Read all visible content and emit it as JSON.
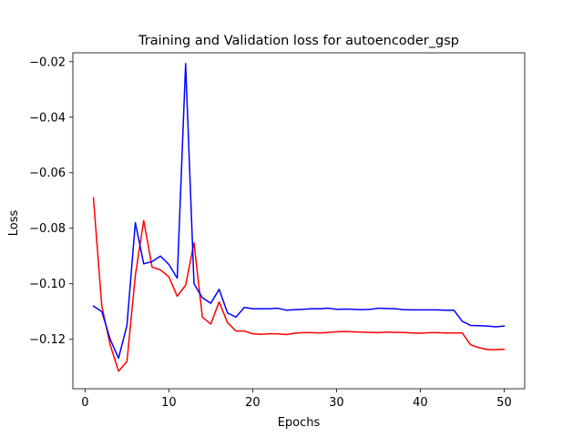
{
  "chart_data": {
    "type": "line",
    "title": "Training and Validation loss for autoencoder_gsp",
    "xlabel": "Epochs",
    "ylabel": "Loss",
    "xlim": [
      -1.45,
      52.45
    ],
    "ylim": [
      -0.1378,
      -0.0168
    ],
    "xticks": [
      0,
      10,
      20,
      30,
      40,
      50
    ],
    "xtick_labels": [
      "0",
      "10",
      "20",
      "30",
      "40",
      "50"
    ],
    "yticks": [
      -0.12,
      -0.1,
      -0.08,
      -0.06,
      -0.04,
      -0.02
    ],
    "ytick_labels": [
      "−0.12",
      "−0.10",
      "−0.08",
      "−0.06",
      "−0.04",
      "−0.02"
    ],
    "grid": false,
    "legend": false,
    "x": [
      1,
      2,
      3,
      4,
      5,
      6,
      7,
      8,
      9,
      10,
      11,
      12,
      13,
      14,
      15,
      16,
      17,
      18,
      19,
      20,
      21,
      22,
      23,
      24,
      25,
      26,
      27,
      28,
      29,
      30,
      31,
      32,
      33,
      34,
      35,
      36,
      37,
      38,
      39,
      40,
      41,
      42,
      43,
      44,
      45,
      46,
      47,
      48,
      49,
      50
    ],
    "series": [
      {
        "color": "#ff0000",
        "values": [
          -0.069,
          -0.108,
          -0.122,
          -0.1315,
          -0.128,
          -0.097,
          -0.0772,
          -0.094,
          -0.095,
          -0.0975,
          -0.1045,
          -0.1005,
          -0.0852,
          -0.112,
          -0.1145,
          -0.1065,
          -0.114,
          -0.117,
          -0.117,
          -0.118,
          -0.1182,
          -0.118,
          -0.118,
          -0.1183,
          -0.1178,
          -0.1176,
          -0.1176,
          -0.1177,
          -0.1175,
          -0.1173,
          -0.1172,
          -0.1173,
          -0.1174,
          -0.1175,
          -0.1176,
          -0.1174,
          -0.1175,
          -0.1175,
          -0.1177,
          -0.1178,
          -0.1176,
          -0.1176,
          -0.1177,
          -0.1177,
          -0.1177,
          -0.122,
          -0.123,
          -0.1237,
          -0.1237,
          -0.1236
        ]
      },
      {
        "color": "#0000ff",
        "values": [
          -0.108,
          -0.11,
          -0.12,
          -0.1268,
          -0.115,
          -0.078,
          -0.0928,
          -0.092,
          -0.09,
          -0.093,
          -0.098,
          -0.0207,
          -0.1,
          -0.105,
          -0.107,
          -0.102,
          -0.1105,
          -0.112,
          -0.1085,
          -0.109,
          -0.109,
          -0.109,
          -0.1088,
          -0.1095,
          -0.1093,
          -0.1092,
          -0.109,
          -0.109,
          -0.1088,
          -0.1092,
          -0.1091,
          -0.1092,
          -0.1093,
          -0.1092,
          -0.1088,
          -0.1089,
          -0.109,
          -0.1093,
          -0.1094,
          -0.1094,
          -0.1094,
          -0.1094,
          -0.1095,
          -0.1095,
          -0.1135,
          -0.115,
          -0.1151,
          -0.1152,
          -0.1155,
          -0.1152
        ]
      }
    ]
  }
}
